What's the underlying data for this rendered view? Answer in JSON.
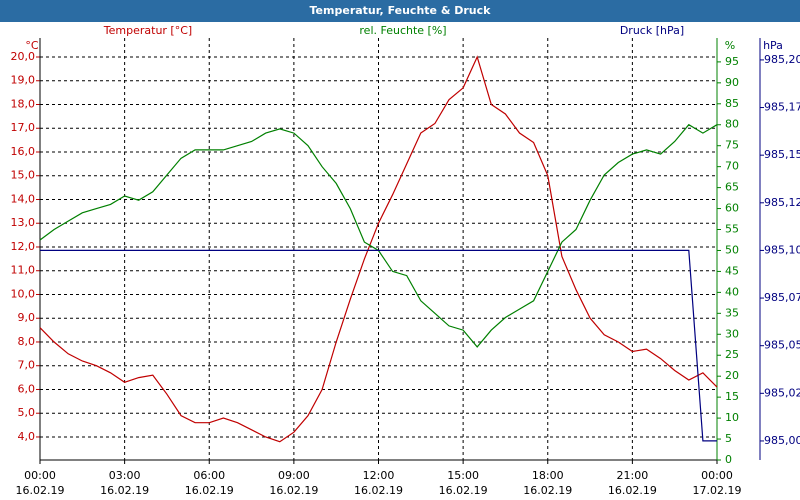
{
  "chart_data": {
    "type": "line",
    "title": "Temperatur, Feuchte & Druck",
    "x": [
      0,
      0.5,
      1,
      1.5,
      2,
      2.5,
      3,
      3.5,
      4,
      4.5,
      5,
      5.5,
      6,
      6.5,
      7,
      7.5,
      8,
      8.5,
      9,
      9.5,
      10,
      10.5,
      11,
      11.5,
      12,
      12.5,
      13,
      13.5,
      14,
      14.5,
      15,
      15.5,
      16,
      16.5,
      17,
      17.5,
      18,
      18.5,
      19,
      19.5,
      20,
      20.5,
      21,
      21.5,
      22,
      22.5,
      23,
      23.5,
      24
    ],
    "xlim": [
      0,
      24
    ],
    "xticks": [
      {
        "value": 0,
        "label": "00:00",
        "date": "16.02.19"
      },
      {
        "value": 3,
        "label": "03:00",
        "date": "16.02.19"
      },
      {
        "value": 6,
        "label": "06:00",
        "date": "16.02.19"
      },
      {
        "value": 9,
        "label": "09:00",
        "date": "16.02.19"
      },
      {
        "value": 12,
        "label": "12:00",
        "date": "16.02.19"
      },
      {
        "value": 15,
        "label": "15:00",
        "date": "16.02.19"
      },
      {
        "value": 18,
        "label": "18:00",
        "date": "16.02.19"
      },
      {
        "value": 21,
        "label": "21:00",
        "date": "16.02.19"
      },
      {
        "value": 24,
        "label": "00:00",
        "date": "17.02.19"
      }
    ],
    "ylabel": "°C",
    "y2label": "%",
    "y3label": "hPa",
    "ylim": [
      3.03,
      20.8
    ],
    "yticks": [
      {
        "value": 4,
        "label": "4,0"
      },
      {
        "value": 5,
        "label": "5,0"
      },
      {
        "value": 6,
        "label": "6,0"
      },
      {
        "value": 7,
        "label": "7,0"
      },
      {
        "value": 8,
        "label": "8,0"
      },
      {
        "value": 9,
        "label": "9,0"
      },
      {
        "value": 10,
        "label": "10,0"
      },
      {
        "value": 11,
        "label": "11,0"
      },
      {
        "value": 12,
        "label": "12,0"
      },
      {
        "value": 13,
        "label": "13,0"
      },
      {
        "value": 14,
        "label": "14,0"
      },
      {
        "value": 15,
        "label": "15,0"
      },
      {
        "value": 16,
        "label": "16,0"
      },
      {
        "value": 17,
        "label": "17,0"
      },
      {
        "value": 18,
        "label": "18,0"
      },
      {
        "value": 19,
        "label": "19,0"
      },
      {
        "value": 20,
        "label": "20,0"
      }
    ],
    "y2lim": [
      0,
      100.7
    ],
    "y2ticks": [
      0,
      5,
      10,
      15,
      20,
      25,
      30,
      35,
      40,
      45,
      50,
      55,
      60,
      65,
      70,
      75,
      80,
      85,
      90,
      95
    ],
    "y3lim": [
      984.99,
      985.2115
    ],
    "y3ticks": [
      {
        "value": 985,
        "label": "985,00"
      },
      {
        "value": 985.025,
        "label": "985,02"
      },
      {
        "value": 985.05,
        "label": "985,05"
      },
      {
        "value": 985.075,
        "label": "985,07"
      },
      {
        "value": 985.1,
        "label": "985,10"
      },
      {
        "value": 985.125,
        "label": "985,12"
      },
      {
        "value": 985.15,
        "label": "985,15"
      },
      {
        "value": 985.175,
        "label": "985,17"
      },
      {
        "value": 985.2,
        "label": "985,20"
      }
    ],
    "grid": true,
    "series": [
      {
        "name": "Temperatur [°C]",
        "color": "#c00000",
        "axis": "y",
        "values": [
          8.6,
          8.0,
          7.5,
          7.2,
          7.0,
          6.7,
          6.3,
          6.5,
          6.6,
          5.8,
          4.9,
          4.6,
          4.6,
          4.8,
          4.6,
          4.3,
          4.0,
          3.8,
          4.2,
          4.9,
          6.0,
          8.0,
          9.8,
          11.5,
          13.0,
          14.2,
          15.5,
          16.8,
          17.2,
          18.2,
          18.7,
          20.0,
          18.0,
          17.6,
          16.8,
          16.4,
          15.0,
          11.6,
          10.2,
          9.0,
          8.3,
          8.0,
          7.6,
          7.7,
          7.3,
          6.8,
          6.4,
          6.7,
          6.1
        ]
      },
      {
        "name": "rel. Feuchte [%]",
        "color": "#008000",
        "axis": "y2",
        "values": [
          52.5,
          55,
          57,
          59,
          60,
          61,
          63,
          62,
          64,
          68,
          72,
          74,
          74,
          74,
          75,
          76,
          78,
          79,
          78,
          75,
          70,
          66,
          60,
          52,
          50,
          45,
          44,
          38,
          35,
          32,
          31,
          27,
          31,
          34,
          36,
          38,
          45,
          52,
          55,
          62,
          68,
          71,
          73,
          74,
          73,
          76,
          80,
          78,
          80
        ]
      },
      {
        "name": "Druck [hPa]",
        "color": "#000080",
        "axis": "y3",
        "values": [
          985.1,
          985.1,
          985.1,
          985.1,
          985.1,
          985.1,
          985.1,
          985.1,
          985.1,
          985.1,
          985.1,
          985.1,
          985.1,
          985.1,
          985.1,
          985.1,
          985.1,
          985.1,
          985.1,
          985.1,
          985.1,
          985.1,
          985.1,
          985.1,
          985.1,
          985.1,
          985.1,
          985.1,
          985.1,
          985.1,
          985.1,
          985.1,
          985.1,
          985.1,
          985.1,
          985.1,
          985.1,
          985.1,
          985.1,
          985.1,
          985.1,
          985.1,
          985.1,
          985.1,
          985.1,
          985.1,
          985.1,
          985.0,
          985.0
        ]
      }
    ]
  }
}
